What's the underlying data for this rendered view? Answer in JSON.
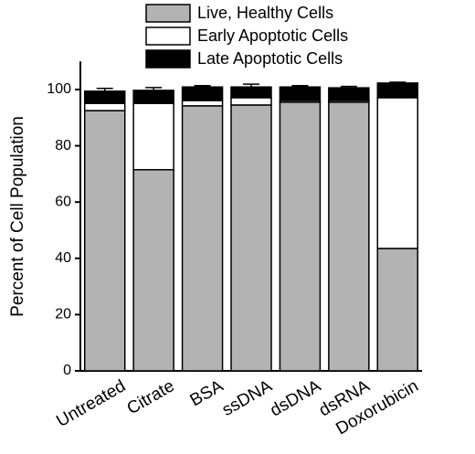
{
  "chart_data": {
    "type": "stacked_bar",
    "y_label": "Percent of Cell Population",
    "categories": [
      "Untreated",
      "Citrate",
      "BSA",
      "ssDNA",
      "dsDNA",
      "dsRNA",
      "Doxorubicin"
    ],
    "series": [
      {
        "name": "Live, Healthy Cells",
        "color": "#b3b3b3",
        "values": [
          92.5,
          71.5,
          94.2,
          94.5,
          95.5,
          95.5,
          43.5
        ],
        "errors": [
          0.5,
          3.3,
          0.6,
          1.2,
          0.4,
          0.4,
          3.6
        ]
      },
      {
        "name": "Early Apoptotic Cells",
        "color": "#ffffff",
        "values": [
          2.6,
          23.6,
          1.9,
          2.6,
          0.6,
          0.6,
          53.6
        ]
      },
      {
        "name": "Late Apoptotic Cells",
        "color": "#000000",
        "values": [
          4.3,
          4.6,
          4.8,
          3.8,
          4.8,
          4.5,
          5.2
        ],
        "errors": [
          1.0,
          1.0,
          0.5,
          1.0,
          0.5,
          0.5,
          0.3
        ]
      }
    ],
    "ylim": [
      0,
      110
    ],
    "yticks": [
      0,
      20,
      40,
      60,
      80,
      100
    ],
    "legend": "top"
  }
}
